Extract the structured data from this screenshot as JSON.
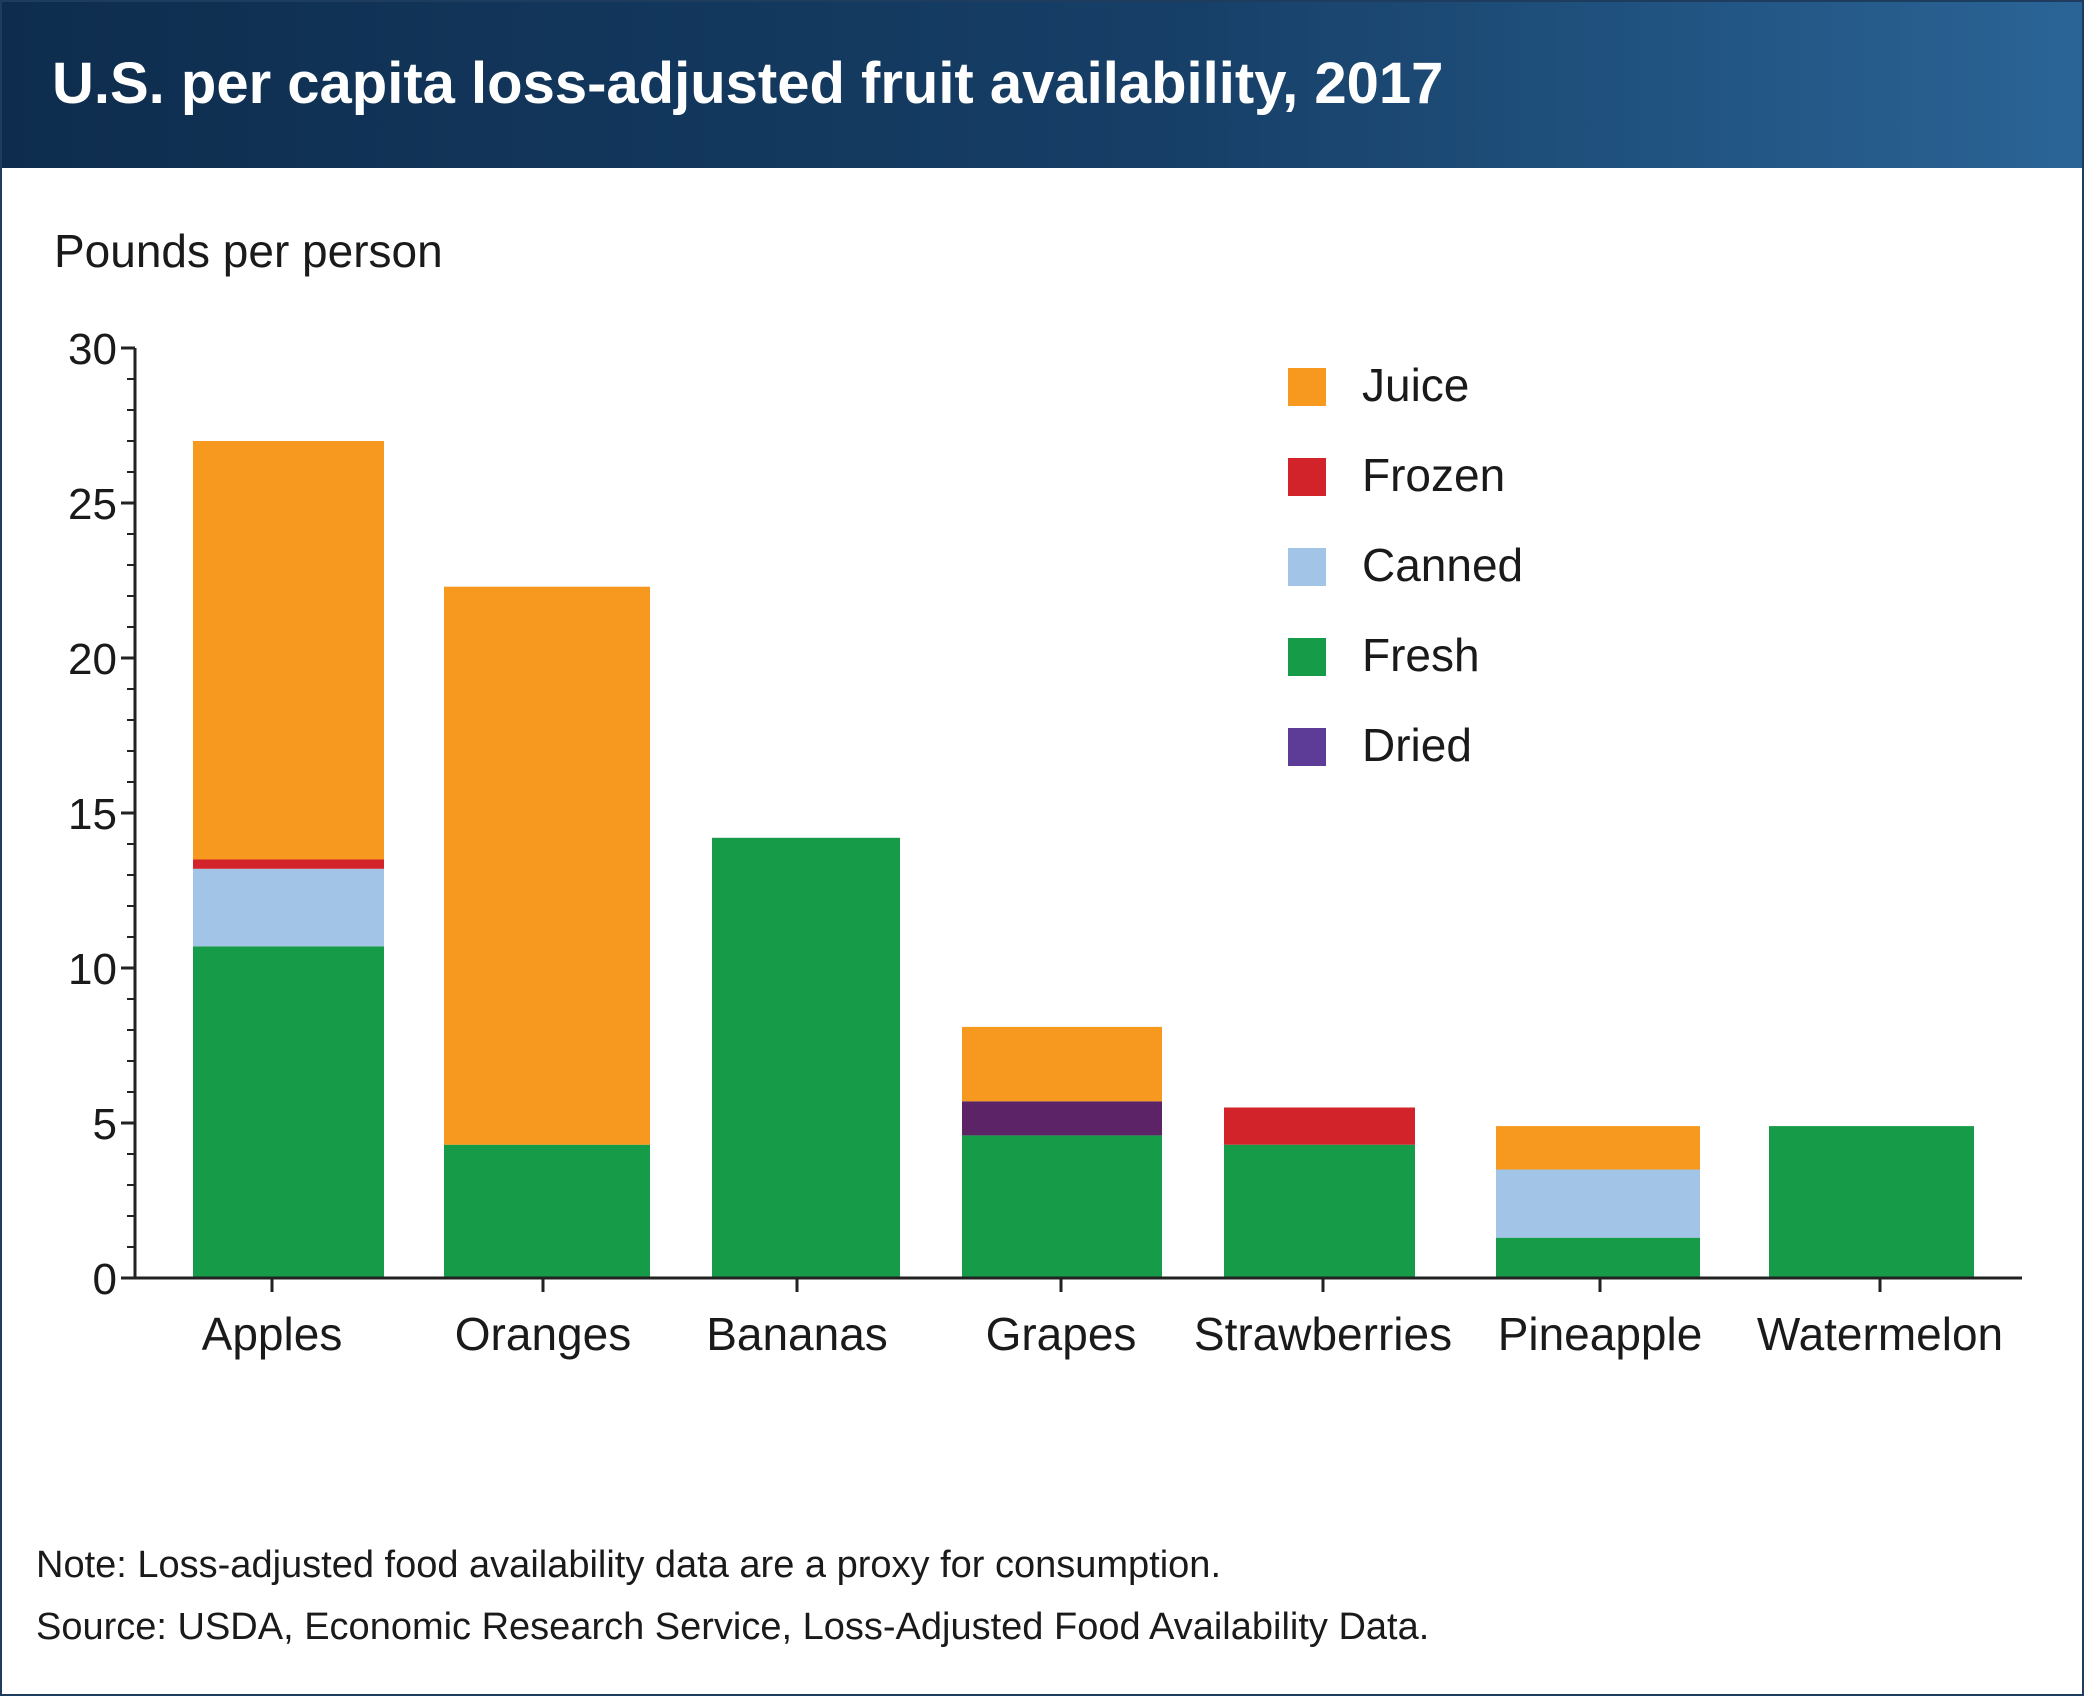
{
  "title": "U.S. per capita loss-adjusted fruit availability, 2017",
  "notes": {
    "note": "Note: Loss-adjusted food availability data are a proxy for consumption.",
    "source": "Source: USDA, Economic Research Service, Loss-Adjusted Food Availability Data."
  },
  "chart_data": {
    "type": "bar",
    "stacked": true,
    "title": "U.S. per capita loss-adjusted fruit availability, 2017",
    "ylabel": "Pounds per person",
    "xlabel": "",
    "ylim": [
      0,
      30
    ],
    "yticks": [
      0,
      5,
      10,
      15,
      20,
      25,
      30
    ],
    "categories": [
      "Apples",
      "Oranges",
      "Bananas",
      "Grapes",
      "Strawberries",
      "Pineapple",
      "Watermelon"
    ],
    "series": [
      {
        "name": "Fresh",
        "color": "#169b48",
        "values": [
          10.7,
          4.3,
          14.2,
          4.6,
          4.3,
          1.3,
          4.9
        ]
      },
      {
        "name": "Canned",
        "color": "#a2c4e6",
        "values": [
          2.5,
          0,
          0,
          0,
          0,
          2.2,
          0
        ]
      },
      {
        "name": "Frozen",
        "color": "#d2232a",
        "values": [
          0.3,
          0,
          0,
          0,
          1.2,
          0,
          0
        ]
      },
      {
        "name": "Dried",
        "color": "#5c2466",
        "values": [
          0,
          0,
          0,
          1.1,
          0,
          0,
          0
        ]
      },
      {
        "name": "Juice",
        "color": "#f7991f",
        "values": [
          13.5,
          18.0,
          0,
          2.4,
          0,
          1.4,
          0
        ]
      }
    ],
    "legend": {
      "placement": "top-right",
      "order": [
        {
          "name": "Juice",
          "color": "#f7991f"
        },
        {
          "name": "Frozen",
          "color": "#d2232a"
        },
        {
          "name": "Canned",
          "color": "#a2c4e6"
        },
        {
          "name": "Fresh",
          "color": "#169b48"
        },
        {
          "name": "Dried",
          "color": "#5c3c96"
        }
      ]
    },
    "grid": false
  }
}
